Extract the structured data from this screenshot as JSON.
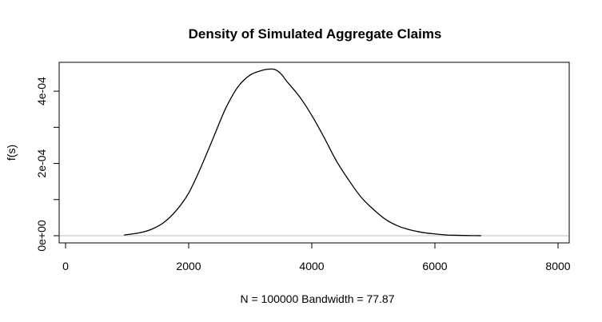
{
  "chart_data": {
    "type": "line",
    "title": "Density of Simulated Aggregate Claims",
    "xlabel": "N = 100000   Bandwidth = 77.87",
    "ylabel": "f(s)",
    "xlim": [
      0,
      8000
    ],
    "ylim": [
      0,
      0.00046
    ],
    "x_ticks": [
      0,
      2000,
      4000,
      6000,
      8000
    ],
    "x_tick_labels": [
      "0",
      "2000",
      "4000",
      "6000",
      "8000"
    ],
    "y_ticks": [
      0,
      0.0001,
      0.0002,
      0.0003,
      0.0004
    ],
    "y_tick_labels": [
      "0e+00",
      "",
      "2e-04",
      "",
      "4e-04"
    ],
    "baseline": 0,
    "grid": false,
    "legend": "none",
    "series": [
      {
        "color": "#000000",
        "x": [
          950,
          1200,
          1400,
          1600,
          1800,
          2000,
          2200,
          2400,
          2600,
          2800,
          3000,
          3200,
          3300,
          3400,
          3500,
          3600,
          3800,
          4000,
          4200,
          4400,
          4600,
          4800,
          5000,
          5200,
          5400,
          5600,
          5800,
          6000,
          6200,
          6400,
          6600,
          6750
        ],
        "y": [
          2e-06,
          8e-06,
          1.8e-05,
          3.7e-05,
          7e-05,
          0.000118,
          0.00019,
          0.000271,
          0.000352,
          0.000412,
          0.000445,
          0.000458,
          0.000461,
          0.00046,
          0.000448,
          0.000426,
          0.000385,
          0.000333,
          0.000272,
          0.000207,
          0.000154,
          0.000107,
          7.3e-05,
          4.5e-05,
          2.7e-05,
          1.6e-05,
          9e-06,
          5e-06,
          2e-06,
          1e-06,
          3e-07,
          1e-07
        ]
      }
    ],
    "colors": {
      "curve": "#000000",
      "baseline": "#bebebe",
      "box": "#000000"
    }
  }
}
